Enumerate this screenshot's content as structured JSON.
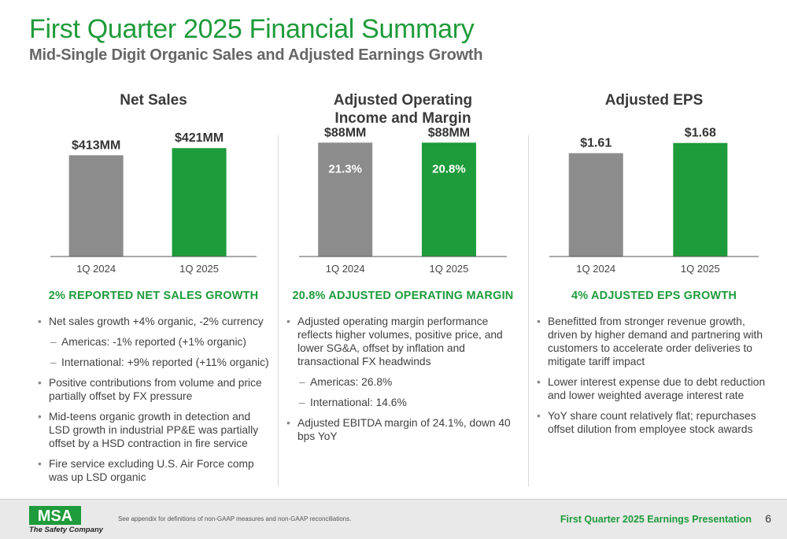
{
  "header": {
    "title": "First Quarter 2025 Financial Summary",
    "subtitle": "Mid-Single Digit Organic Sales and Adjusted Earnings Growth"
  },
  "colors": {
    "accent": "#1e9b3a",
    "bar_gray": "#8c8c8c",
    "bar_green": "#1e9b3a"
  },
  "chart_data": [
    {
      "type": "bar",
      "title": "Net Sales",
      "categories": [
        "1Q 2024",
        "1Q 2025"
      ],
      "values": [
        413,
        421
      ],
      "data_labels": [
        "$413MM",
        "$421MM"
      ],
      "ylim": [
        300,
        430
      ]
    },
    {
      "type": "bar",
      "title": "Adjusted Operating Income and Margin",
      "categories": [
        "1Q 2024",
        "1Q 2025"
      ],
      "values": [
        88,
        88
      ],
      "margins": [
        21.3,
        20.8
      ],
      "data_labels": [
        "$88MM",
        "$88MM"
      ],
      "inner_labels": [
        "21.3%",
        "20.8%"
      ],
      "ylim": [
        0,
        90
      ]
    },
    {
      "type": "bar",
      "title": "Adjusted EPS",
      "categories": [
        "1Q 2024",
        "1Q 2025"
      ],
      "values": [
        1.61,
        1.68
      ],
      "data_labels": [
        "$1.61",
        "$1.68"
      ],
      "ylim": [
        0.9,
        1.7
      ]
    }
  ],
  "panels": [
    {
      "chart_title_lines": [
        "Net Sales",
        ""
      ],
      "headline": "2% REPORTED NET SALES GROWTH",
      "bullets": [
        {
          "level": 1,
          "text": "Net sales growth +4% organic, -2% currency"
        },
        {
          "level": 2,
          "text": "Americas: -1% reported (+1% organic)"
        },
        {
          "level": 2,
          "text": "International: +9% reported (+11% organic)"
        },
        {
          "level": 1,
          "text": "Positive contributions from volume and price partially offset by FX pressure"
        },
        {
          "level": 1,
          "text": "Mid-teens organic growth in detection and LSD growth in industrial PP&E was partially offset by a HSD contraction in fire service"
        },
        {
          "level": 1,
          "text": "Fire service excluding U.S. Air Force comp was up LSD organic"
        }
      ]
    },
    {
      "chart_title_lines": [
        "Adjusted Operating",
        "Income and Margin"
      ],
      "headline": "20.8% ADJUSTED OPERATING MARGIN",
      "bullets": [
        {
          "level": 1,
          "text": "Adjusted operating margin performance reflects higher volumes, positive price, and lower SG&A, offset by inflation and transactional FX headwinds"
        },
        {
          "level": 2,
          "text": "Americas: 26.8%"
        },
        {
          "level": 2,
          "text": "International: 14.6%"
        },
        {
          "level": 1,
          "text": "Adjusted EBITDA margin of 24.1%, down 40 bps YoY"
        }
      ]
    },
    {
      "chart_title_lines": [
        "Adjusted EPS",
        ""
      ],
      "headline": "4% ADJUSTED EPS GROWTH",
      "bullets": [
        {
          "level": 1,
          "text": "Benefitted from stronger revenue growth, driven by higher demand and partnering with customers to accelerate order deliveries to mitigate tariff impact"
        },
        {
          "level": 1,
          "text": "Lower interest expense due to debt reduction and lower weighted average interest rate"
        },
        {
          "level": 1,
          "text": "YoY share count relatively flat; repurchases offset dilution from employee stock awards"
        }
      ]
    }
  ],
  "footer": {
    "logo_text": "MSA",
    "tagline": "The Safety Company",
    "footnote": "See appendix for definitions of non-GAAP measures and non-GAAP reconciliations.",
    "presentation_title": "First Quarter 2025 Earnings Presentation",
    "page_number": "6"
  }
}
